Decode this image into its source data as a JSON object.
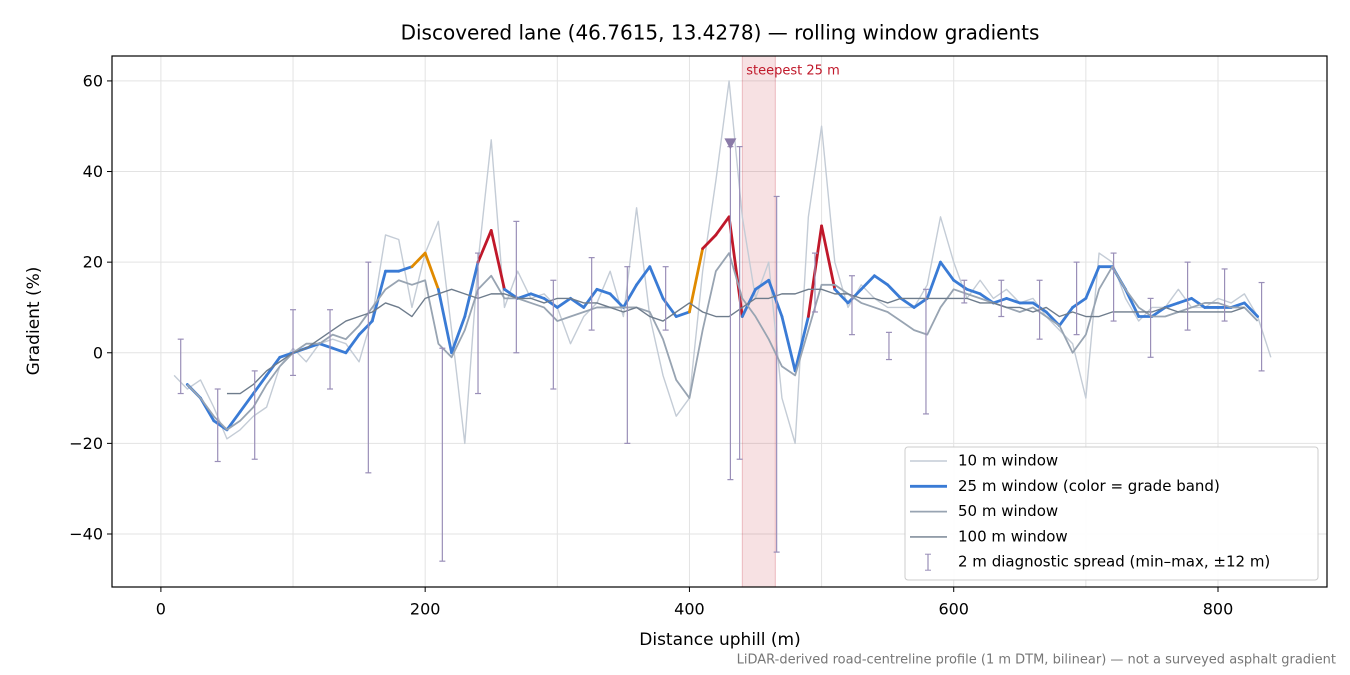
{
  "chart_data": {
    "type": "line",
    "title": "Discovered lane (46.7615, 13.4278) — rolling window gradients",
    "x_label": "Distance uphill (m)",
    "y_label": "Gradient (%)",
    "footnote": "LiDAR-derived road-centreline profile (1 m DTM, bilinear) — not a surveyed asphalt gradient",
    "xlim": [
      -37,
      882.5
    ],
    "ylim": [
      -51.7,
      65.5
    ],
    "xticks": [
      0,
      200,
      400,
      600,
      800
    ],
    "xgrid_minor": [
      100,
      300,
      500,
      700
    ],
    "yticks": [
      {
        "value": -40,
        "label": "−40"
      },
      {
        "value": -20,
        "label": "−20"
      },
      0,
      20,
      40,
      60
    ],
    "grid": true,
    "legend": "lower right",
    "x": [
      10,
      20,
      30,
      40,
      50,
      60,
      70,
      80,
      90,
      100,
      110,
      120,
      130,
      140,
      150,
      160,
      170,
      180,
      190,
      200,
      210,
      220,
      230,
      240,
      250,
      260,
      270,
      280,
      290,
      300,
      310,
      320,
      330,
      340,
      350,
      360,
      370,
      380,
      390,
      400,
      410,
      420,
      430,
      440,
      450,
      460,
      470,
      480,
      490,
      500,
      510,
      520,
      530,
      540,
      550,
      560,
      570,
      580,
      590,
      600,
      610,
      620,
      630,
      640,
      650,
      660,
      670,
      680,
      690,
      700,
      710,
      720,
      730,
      740,
      750,
      760,
      770,
      780,
      790,
      800,
      810,
      820,
      830,
      840
    ],
    "series": [
      {
        "name": "10 m window",
        "color": "#c4ccd6",
        "width": 1.4,
        "values": [
          -5,
          -8,
          -6,
          -12,
          -19,
          -17,
          -14,
          -12,
          -3,
          1,
          -2,
          2,
          3,
          2,
          -2,
          8,
          26,
          25,
          10,
          22,
          29,
          5,
          -20,
          20,
          47,
          10,
          18,
          12,
          13,
          10,
          2,
          8,
          11,
          18,
          8,
          32,
          8,
          -5,
          -14,
          -10,
          18,
          38,
          60,
          30,
          12,
          20,
          -10,
          -20,
          30,
          50,
          20,
          10,
          15,
          12,
          10,
          10,
          10,
          15,
          30,
          20,
          12,
          16,
          12,
          14,
          11,
          12,
          8,
          5,
          2,
          -10,
          22,
          20,
          12,
          7,
          10,
          10,
          14,
          10,
          10,
          12,
          11,
          13,
          8,
          -1
        ]
      },
      {
        "name": "25 m window (color = grade band)",
        "color": "#3a7bd5",
        "width": 2.8,
        "band_thresholds": [
          20,
          25
        ],
        "band_colors": [
          "#3a7bd5",
          "#e08a00",
          "#c0182a"
        ],
        "values": [
          null,
          -7,
          -10,
          -15,
          -17,
          -13,
          -9,
          -5,
          -1,
          0,
          1,
          2,
          1,
          0,
          4,
          7,
          18,
          18,
          19,
          22,
          14,
          0,
          8,
          20,
          27,
          14,
          12,
          13,
          12,
          10,
          12,
          10,
          14,
          13,
          10,
          15,
          19,
          12,
          8,
          9,
          23,
          26,
          30,
          8,
          14,
          16,
          8,
          -4,
          8,
          28,
          14,
          11,
          14,
          17,
          15,
          12,
          10,
          12,
          20,
          16,
          14,
          13,
          11,
          12,
          11,
          11,
          9,
          6,
          10,
          12,
          19,
          19,
          14,
          8,
          8,
          10,
          11,
          12,
          10,
          10,
          10,
          11,
          8,
          null
        ]
      },
      {
        "name": "50 m window",
        "color": "#98a4b2",
        "width": 1.8,
        "values": [
          null,
          -7,
          -10,
          -14,
          -17,
          -15,
          -12,
          -7,
          -3,
          0,
          2,
          2,
          4,
          3,
          6,
          10,
          14,
          16,
          15,
          16,
          2,
          -1,
          5,
          14,
          17,
          12,
          12,
          11,
          10,
          7,
          8,
          9,
          10,
          10,
          10,
          10,
          9,
          3,
          -6,
          -10,
          5,
          18,
          22,
          12,
          8,
          3,
          -3,
          -5,
          5,
          15,
          15,
          13,
          11,
          10,
          9,
          7,
          5,
          4,
          10,
          14,
          13,
          12,
          11,
          10,
          9,
          10,
          8,
          6,
          0,
          4,
          14,
          19,
          14,
          10,
          8,
          8,
          9,
          10,
          11,
          11,
          10,
          10,
          7,
          null
        ]
      },
      {
        "name": "100 m window",
        "color": "#6e7c8c",
        "width": 1.4,
        "values": [
          null,
          null,
          null,
          null,
          -9,
          -9,
          -7,
          -4,
          -2,
          0,
          1,
          3,
          5,
          7,
          8,
          9,
          11,
          10,
          8,
          12,
          13,
          14,
          13,
          12,
          13,
          13,
          12,
          12,
          11,
          12,
          12,
          11,
          11,
          10,
          9,
          10,
          8,
          7,
          9,
          11,
          9,
          8,
          8,
          10,
          12,
          12,
          13,
          13,
          14,
          14,
          13,
          13,
          12,
          12,
          11,
          12,
          12,
          12,
          12,
          12,
          12,
          11,
          11,
          10,
          10,
          9,
          10,
          8,
          9,
          8,
          8,
          9,
          9,
          9,
          9,
          10,
          9,
          9,
          9,
          9,
          9,
          10,
          null,
          null
        ]
      }
    ],
    "errorbars": {
      "name": "2 m diagnostic spread (min–max, ±12 m)",
      "color": "#9a8fb8",
      "x": [
        15,
        43,
        71,
        100,
        128,
        157,
        213,
        240,
        269,
        297,
        326,
        353,
        382,
        431,
        438,
        466,
        495,
        523,
        551,
        579,
        608,
        636,
        665,
        693,
        721,
        749,
        777,
        805,
        833
      ],
      "low": [
        -9,
        -24,
        -23.5,
        -5,
        -8,
        -26.5,
        -46,
        -9,
        0,
        -8,
        5,
        -20,
        5,
        -28,
        -23.5,
        -44,
        9,
        4,
        -1.5,
        -13.5,
        11,
        8,
        3,
        4,
        7,
        -1,
        5,
        7,
        -4
      ],
      "high": [
        3,
        -8,
        -4,
        9.5,
        9.5,
        20,
        1,
        22,
        29,
        16,
        21,
        19,
        19,
        45.5,
        45.5,
        34.5,
        22,
        17,
        4.5,
        14,
        16,
        16,
        16,
        20,
        22,
        12,
        20,
        18.5,
        15.5
      ]
    },
    "highlight": {
      "x0": 440,
      "x1": 465,
      "label": "steepest 25 m",
      "color": "#c0182a"
    },
    "peak_marker": {
      "x": 431,
      "y": 46,
      "color": "#8a7aa8"
    }
  }
}
